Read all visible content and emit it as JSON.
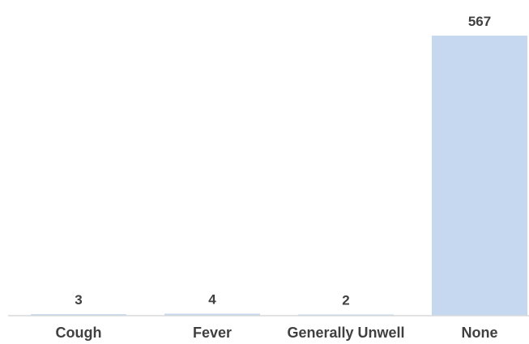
{
  "chart_data": {
    "type": "bar",
    "categories": [
      "Cough",
      "Fever",
      "Generally Unwell",
      "None"
    ],
    "values": [
      3,
      4,
      2,
      567
    ],
    "title": "",
    "xlabel": "",
    "ylabel": "",
    "ylim": [
      0,
      567
    ],
    "grid": false,
    "legend": "none",
    "data_labels": [
      "3",
      "4",
      "2",
      "567"
    ],
    "colors": {
      "bar": "#c5d8f0",
      "axis": "#d9d9d9",
      "text": "#404040"
    }
  }
}
